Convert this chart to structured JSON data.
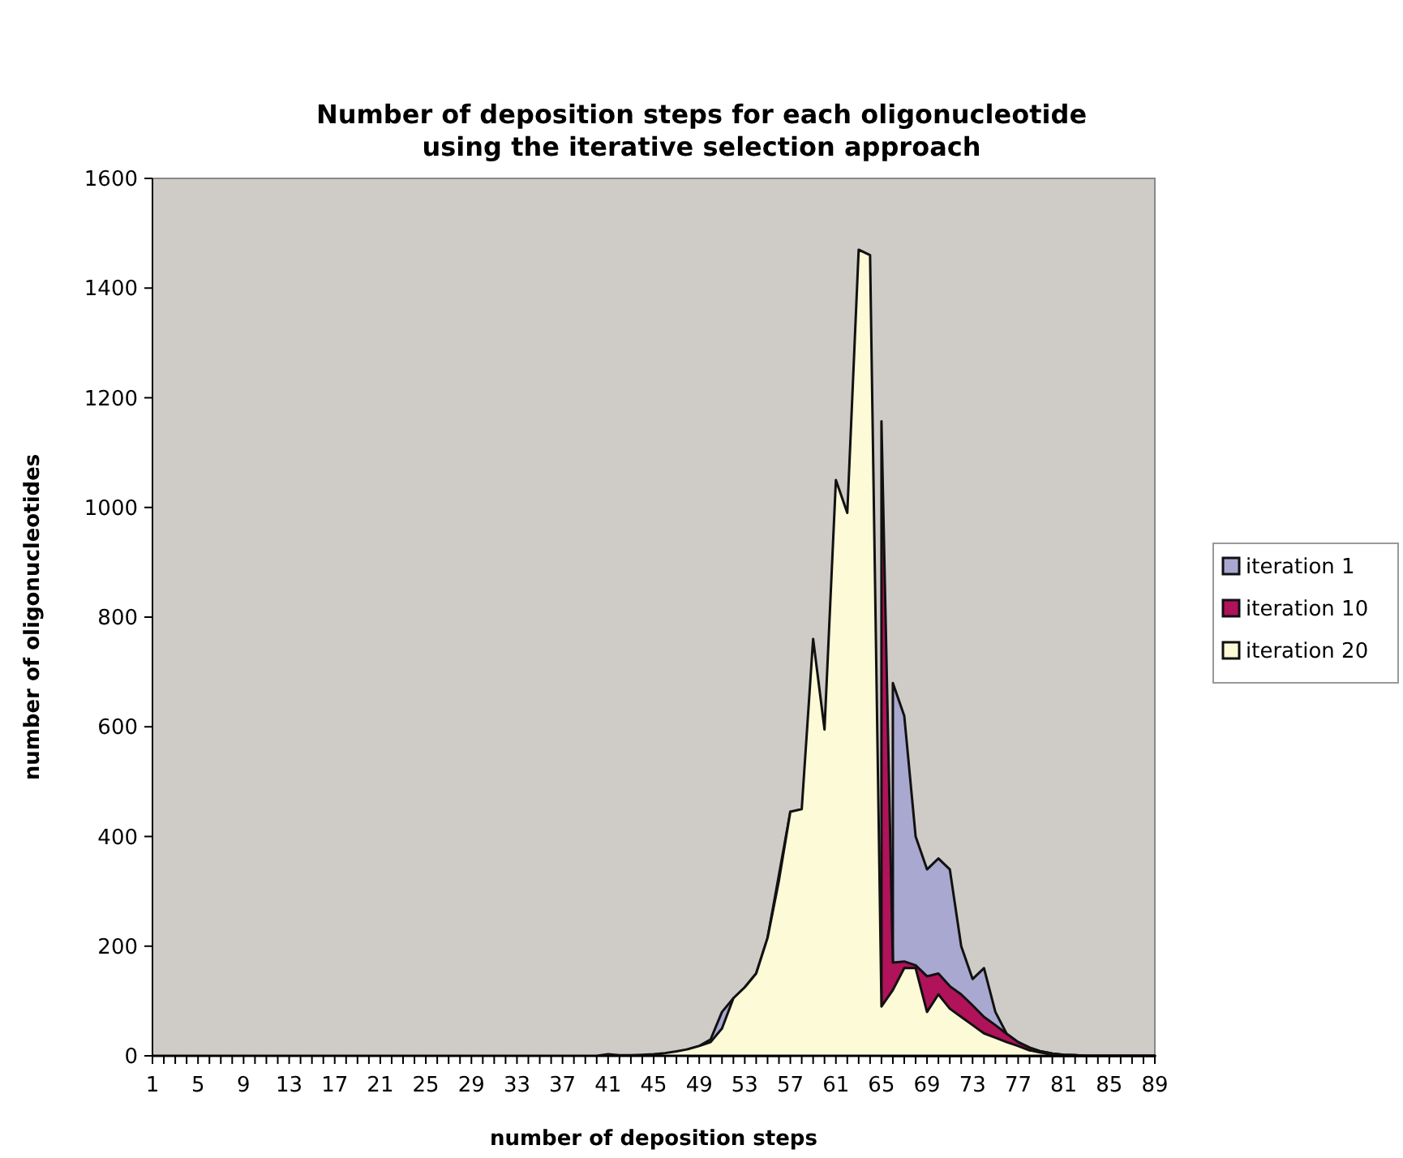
{
  "chart_data": {
    "type": "area",
    "title": "Number of deposition steps for each oligonucleotide\nusing the iterative selection approach",
    "xlabel": "number of deposition steps",
    "ylabel": "number of oligonucleotides",
    "categories": [
      "1",
      null,
      null,
      null,
      "5",
      null,
      null,
      null,
      "9",
      null,
      null,
      null,
      "13",
      null,
      null,
      null,
      "17",
      null,
      null,
      null,
      "21",
      null,
      null,
      null,
      "25",
      null,
      null,
      null,
      "29",
      null,
      null,
      null,
      "33",
      null,
      null,
      null,
      "37",
      null,
      null,
      null,
      "41",
      null,
      null,
      null,
      "45",
      null,
      null,
      null,
      "49",
      null,
      null,
      null,
      "53",
      null,
      null,
      null,
      "57",
      null,
      null,
      null,
      "61",
      null,
      null,
      null,
      "65",
      null,
      null,
      null,
      "69",
      null,
      null,
      null,
      "73",
      null,
      null,
      null,
      "77",
      null,
      null,
      null,
      "81",
      null,
      null,
      null,
      "85",
      null,
      null,
      null,
      "89"
    ],
    "series": [
      {
        "name": "iteration 1",
        "color": "#a9a8d0",
        "values": [
          null,
          null,
          null,
          null,
          null,
          null,
          null,
          null,
          null,
          null,
          null,
          null,
          null,
          null,
          null,
          null,
          null,
          null,
          null,
          null,
          null,
          null,
          null,
          null,
          null,
          null,
          null,
          null,
          null,
          null,
          null,
          null,
          null,
          null,
          null,
          null,
          null,
          null,
          null,
          null,
          null,
          null,
          null,
          null,
          null,
          null,
          null,
          12,
          18,
          30,
          80,
          105,
          125,
          150,
          215,
          330,
          445,
          null,
          null,
          null,
          null,
          null,
          null,
          null,
          null,
          680,
          620,
          400,
          340,
          360,
          340,
          200,
          140,
          160,
          80,
          40,
          25,
          15,
          8,
          4,
          2,
          1,
          0,
          0,
          0,
          0,
          0,
          0,
          0
        ]
      },
      {
        "name": "iteration 10",
        "color": "#b0135a",
        "values": [
          null,
          null,
          null,
          null,
          null,
          null,
          null,
          null,
          null,
          null,
          null,
          null,
          null,
          null,
          null,
          null,
          null,
          null,
          null,
          null,
          null,
          null,
          null,
          null,
          null,
          null,
          null,
          null,
          null,
          null,
          null,
          null,
          null,
          null,
          null,
          null,
          null,
          null,
          null,
          null,
          null,
          null,
          null,
          null,
          null,
          null,
          null,
          null,
          null,
          null,
          null,
          null,
          null,
          null,
          null,
          null,
          null,
          null,
          null,
          null,
          null,
          null,
          null,
          null,
          1157,
          170,
          172,
          165,
          145,
          150,
          127,
          112,
          92,
          71,
          56,
          40,
          25,
          15,
          8,
          4,
          2,
          1,
          0,
          0,
          0,
          0,
          0,
          0,
          0
        ]
      },
      {
        "name": "iteration 20",
        "color": "#fdfad7",
        "values": [
          0,
          0,
          0,
          0,
          0,
          0,
          0,
          0,
          0,
          0,
          0,
          0,
          0,
          0,
          0,
          0,
          0,
          0,
          0,
          0,
          0,
          0,
          0,
          0,
          0,
          0,
          0,
          0,
          0,
          0,
          0,
          0,
          0,
          0,
          0,
          0,
          0,
          0,
          0,
          0,
          3,
          1,
          1,
          2,
          3,
          5,
          8,
          12,
          18,
          25,
          50,
          105,
          125,
          150,
          215,
          320,
          445,
          450,
          760,
          595,
          1050,
          990,
          1470,
          1460,
          90,
          120,
          160,
          160,
          80,
          112,
          86,
          71,
          56,
          41,
          33,
          25,
          18,
          10,
          6,
          3,
          1,
          1,
          0,
          0,
          0,
          0,
          0,
          0,
          0
        ]
      }
    ],
    "ylim": [
      0,
      1600
    ],
    "yticks": [
      0,
      200,
      400,
      600,
      800,
      1000,
      1200,
      1400,
      1600
    ],
    "legend": "right",
    "grid": false
  }
}
